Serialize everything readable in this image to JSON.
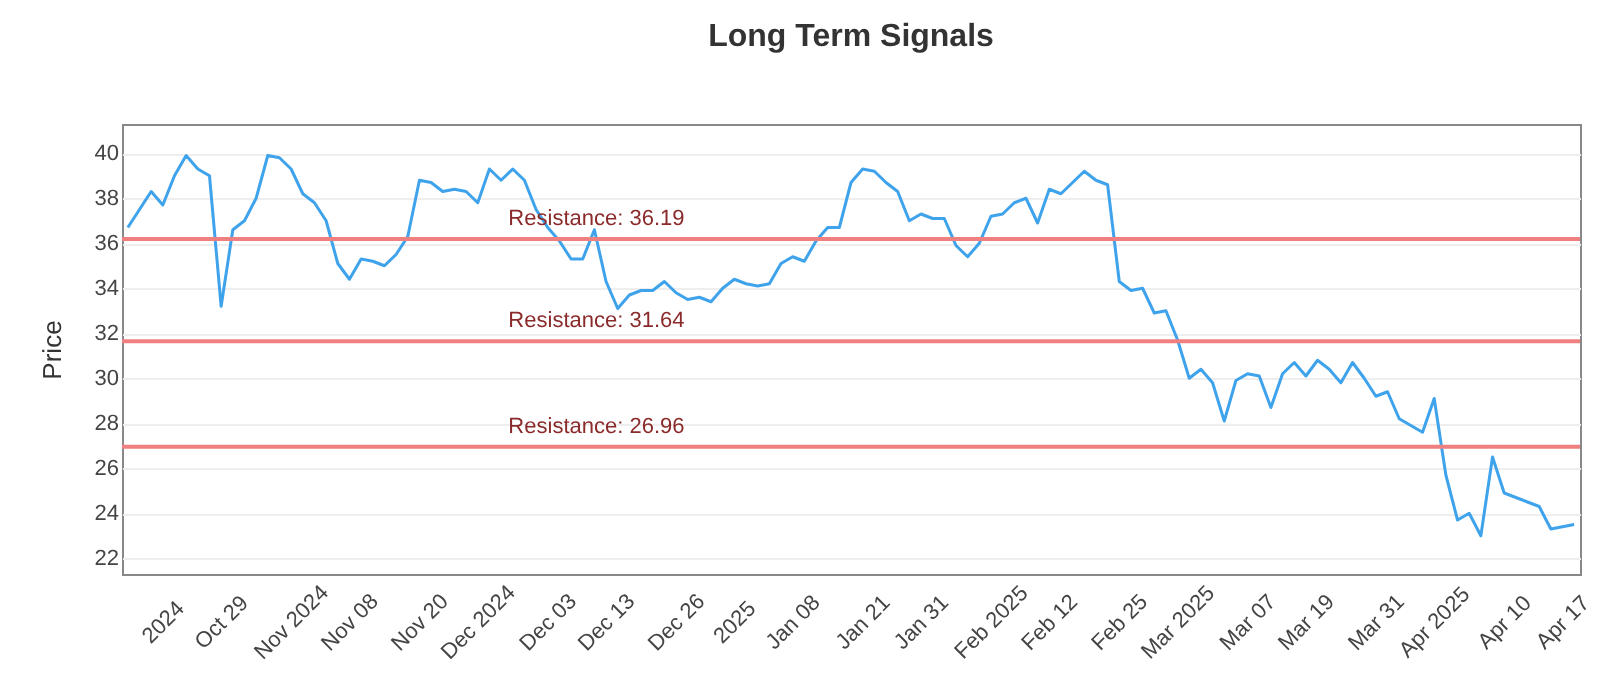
{
  "chart_data": {
    "type": "line",
    "title": "Long Term Signals",
    "ylabel": "Price",
    "categories": [
      null,
      null,
      null,
      "2024",
      null,
      null,
      null,
      null,
      "Oct 29",
      null,
      null,
      null,
      null,
      null,
      "Nov 2024",
      null,
      null,
      null,
      null,
      "Nov 08",
      null,
      null,
      null,
      null,
      null,
      "Nov 20",
      null,
      null,
      null,
      null,
      "Dec 2024",
      null,
      null,
      null,
      null,
      null,
      "Dec 03",
      null,
      null,
      null,
      null,
      "Dec 13",
      null,
      null,
      null,
      null,
      null,
      "Dec 26",
      null,
      null,
      null,
      null,
      "2025",
      null,
      null,
      null,
      null,
      "Jan 08",
      null,
      null,
      null,
      null,
      null,
      "Jan 21",
      null,
      null,
      null,
      null,
      "Jan 31",
      null,
      null,
      null,
      null,
      null,
      "Feb 2025",
      null,
      null,
      null,
      null,
      "Feb 12",
      null,
      null,
      null,
      null,
      null,
      "Feb 25",
      null,
      null,
      null,
      null,
      "Mar 2025",
      null,
      null,
      null,
      null,
      null,
      "Mar 07",
      null,
      null,
      null,
      null,
      "Mar 19",
      null,
      null,
      null,
      null,
      null,
      "Mar 31",
      null,
      null,
      null,
      null,
      "Apr 2025",
      null,
      null,
      null,
      null,
      null,
      "Apr 10",
      null,
      null,
      null,
      null,
      "Apr 17",
      null
    ],
    "series": [
      {
        "color": "#3fa3ec",
        "values": [
          36.7,
          37.5,
          38.3,
          37.7,
          39.0,
          39.9,
          39.3,
          39.0,
          33.2,
          36.6,
          37.0,
          38.0,
          39.9,
          39.8,
          39.3,
          38.2,
          37.8,
          37.0,
          35.1,
          34.4,
          35.3,
          35.2,
          35.0,
          35.5,
          36.3,
          38.8,
          38.7,
          38.3,
          38.4,
          38.3,
          37.8,
          39.3,
          38.8,
          39.3,
          38.8,
          37.5,
          36.7,
          36.1,
          35.3,
          35.3,
          36.6,
          34.3,
          33.1,
          33.7,
          33.9,
          33.9,
          34.3,
          33.8,
          33.5,
          33.6,
          33.4,
          34.0,
          34.4,
          34.2,
          34.1,
          34.2,
          35.1,
          35.4,
          35.2,
          36.1,
          36.7,
          36.7,
          38.7,
          39.3,
          39.2,
          38.7,
          38.3,
          37.0,
          37.3,
          37.1,
          37.1,
          35.9,
          35.4,
          36.0,
          37.2,
          37.3,
          37.8,
          38.0,
          36.9,
          38.4,
          38.2,
          38.7,
          39.2,
          38.8,
          38.6,
          34.3,
          33.9,
          34.0,
          32.9,
          33.0,
          31.7,
          30.0,
          30.4,
          29.8,
          28.1,
          29.9,
          30.2,
          30.1,
          28.7,
          30.2,
          30.7,
          30.1,
          30.8,
          30.4,
          29.8,
          30.7,
          30.0,
          29.2,
          29.4,
          28.2,
          27.9,
          27.6,
          29.1,
          25.7,
          23.7,
          24.0,
          23.0,
          26.5,
          24.9,
          24.7,
          24.5,
          24.3,
          23.3,
          23.4,
          23.5
        ]
      }
    ],
    "ylim": [
      21.3,
      41.3
    ],
    "yticks": [
      22,
      24,
      26,
      28,
      30,
      32,
      34,
      36,
      38,
      40
    ],
    "grid": "y",
    "marker": "none",
    "line_style": "solid",
    "ref_lines": [
      {
        "axis": "y",
        "value": 36.19,
        "label": "Resistance: 36.19",
        "color": "#f08080"
      },
      {
        "axis": "y",
        "value": 31.64,
        "label": "Resistance: 31.64",
        "color": "#f08080"
      },
      {
        "axis": "y",
        "value": 26.96,
        "label": "Resistance: 26.96",
        "color": "#f08080"
      }
    ]
  }
}
